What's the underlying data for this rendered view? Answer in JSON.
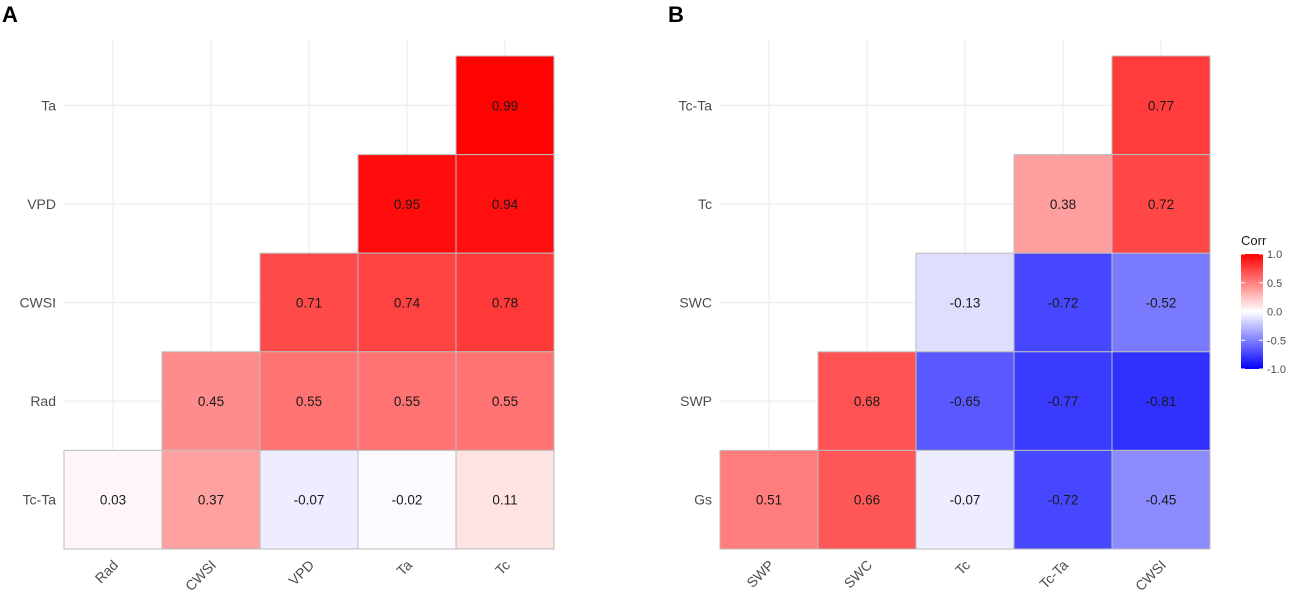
{
  "chart_data": [
    {
      "type": "heatmap",
      "panel": "A",
      "x_labels": [
        "Rad",
        "CWSI",
        "VPD",
        "Ta",
        "Tc"
      ],
      "y_labels": [
        "Ta",
        "VPD",
        "CWSI",
        "Rad",
        "Tc-Ta"
      ],
      "cells": [
        {
          "x": "Tc",
          "y": "Ta",
          "value": 0.99,
          "label": "0.99"
        },
        {
          "x": "Ta",
          "y": "VPD",
          "value": 0.95,
          "label": "0.95"
        },
        {
          "x": "Tc",
          "y": "VPD",
          "value": 0.94,
          "label": "0.94"
        },
        {
          "x": "VPD",
          "y": "CWSI",
          "value": 0.71,
          "label": "0.71"
        },
        {
          "x": "Ta",
          "y": "CWSI",
          "value": 0.74,
          "label": "0.74"
        },
        {
          "x": "Tc",
          "y": "CWSI",
          "value": 0.78,
          "label": "0.78"
        },
        {
          "x": "CWSI",
          "y": "Rad",
          "value": 0.45,
          "label": "0.45"
        },
        {
          "x": "VPD",
          "y": "Rad",
          "value": 0.55,
          "label": "0.55"
        },
        {
          "x": "Ta",
          "y": "Rad",
          "value": 0.55,
          "label": "0.55"
        },
        {
          "x": "Tc",
          "y": "Rad",
          "value": 0.55,
          "label": "0.55"
        },
        {
          "x": "Rad",
          "y": "Tc-Ta",
          "value": 0.03,
          "label": "0.03"
        },
        {
          "x": "CWSI",
          "y": "Tc-Ta",
          "value": 0.37,
          "label": "0.37"
        },
        {
          "x": "VPD",
          "y": "Tc-Ta",
          "value": -0.07,
          "label": "-0.07"
        },
        {
          "x": "Ta",
          "y": "Tc-Ta",
          "value": -0.02,
          "label": "-0.02"
        },
        {
          "x": "Tc",
          "y": "Tc-Ta",
          "value": 0.11,
          "label": "0.11"
        }
      ]
    },
    {
      "type": "heatmap",
      "panel": "B",
      "x_labels": [
        "SWP",
        "SWC",
        "Tc",
        "Tc-Ta",
        "CWSI"
      ],
      "y_labels": [
        "Tc-Ta",
        "Tc",
        "SWC",
        "SWP",
        "Gs"
      ],
      "cells": [
        {
          "x": "CWSI",
          "y": "Tc-Ta",
          "value": 0.77,
          "label": "0.77"
        },
        {
          "x": "Tc-Ta",
          "y": "Tc",
          "value": 0.38,
          "label": "0.38"
        },
        {
          "x": "CWSI",
          "y": "Tc",
          "value": 0.72,
          "label": "0.72"
        },
        {
          "x": "Tc",
          "y": "SWC",
          "value": -0.13,
          "label": "-0.13"
        },
        {
          "x": "Tc-Ta",
          "y": "SWC",
          "value": -0.72,
          "label": "-0.72"
        },
        {
          "x": "CWSI",
          "y": "SWC",
          "value": -0.52,
          "label": "-0.52"
        },
        {
          "x": "SWC",
          "y": "SWP",
          "value": 0.68,
          "label": "0.68"
        },
        {
          "x": "Tc",
          "y": "SWP",
          "value": -0.65,
          "label": "-0.65"
        },
        {
          "x": "Tc-Ta",
          "y": "SWP",
          "value": -0.77,
          "label": "-0.77"
        },
        {
          "x": "CWSI",
          "y": "SWP",
          "value": -0.81,
          "label": "-0.81"
        },
        {
          "x": "SWP",
          "y": "Gs",
          "value": 0.51,
          "label": "0.51"
        },
        {
          "x": "SWC",
          "y": "Gs",
          "value": 0.66,
          "label": "0.66"
        },
        {
          "x": "Tc",
          "y": "Gs",
          "value": -0.07,
          "label": "-0.07"
        },
        {
          "x": "Tc-Ta",
          "y": "Gs",
          "value": -0.72,
          "label": "-0.72"
        },
        {
          "x": "CWSI",
          "y": "Gs",
          "value": -0.45,
          "label": "-0.45"
        }
      ]
    }
  ],
  "legend": {
    "title": "Corr",
    "ticks": [
      "1.0",
      "0.5",
      "0.0",
      "-0.5",
      "-1.0"
    ],
    "tick_values": [
      1.0,
      0.5,
      0.0,
      -0.5,
      -1.0
    ],
    "range": [
      -1.0,
      1.0
    ],
    "colors": {
      "high": "#FF0000",
      "mid": "#FFFFFF",
      "low": "#0000FF"
    }
  },
  "grid": true
}
